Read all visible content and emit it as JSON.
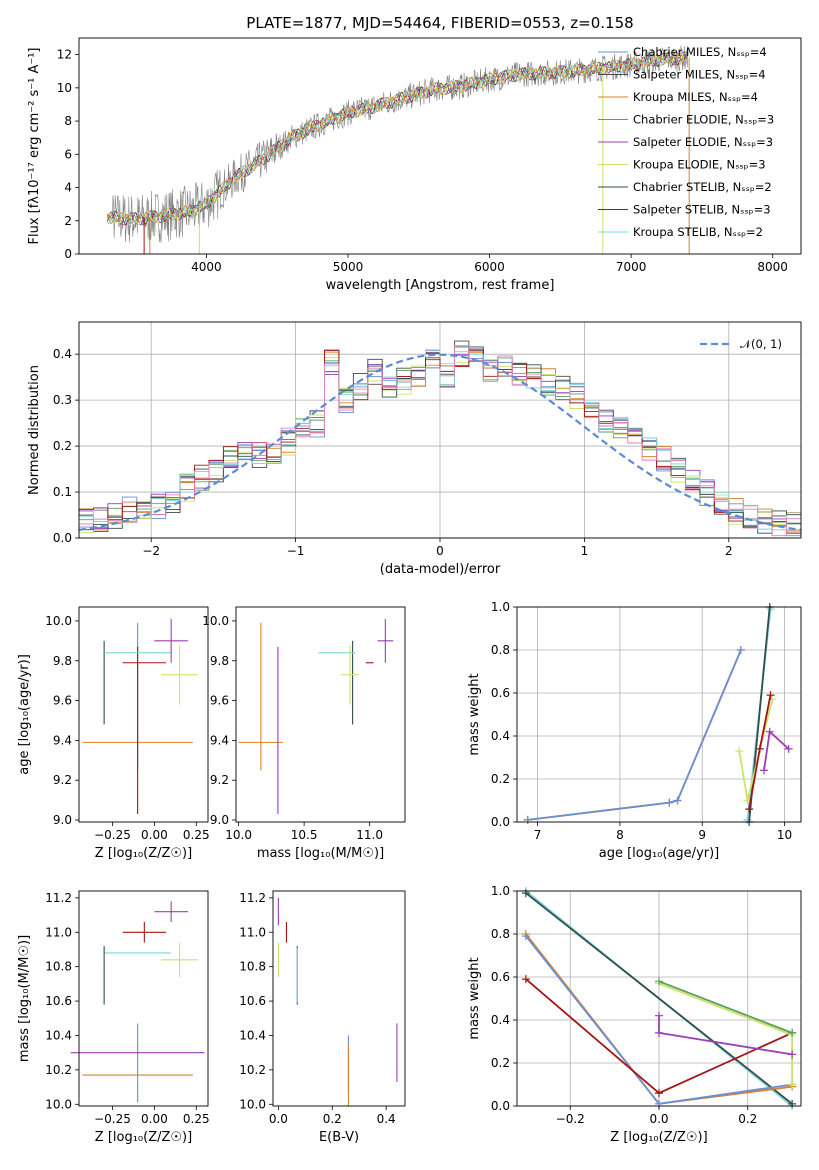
{
  "title": "PLATE=1877, MJD=54464, FIBERID=0553, z=0.158",
  "colors": {
    "chabrier_miles": "#6b8fd6",
    "salpeter_miles": "#4a4a4a",
    "kroupa_miles": "#d9822b",
    "chabrier_elodie": "#5aa05a",
    "salpeter_elodie": "#9a3fb5",
    "kroupa_elodie": "#c9e36b",
    "chabrier_stelib": "#2f4f4f",
    "salpeter_stelib": "#a31515",
    "kroupa_stelib": "#7fd4d9",
    "data_grey": "#808080",
    "normal": "#5b8bd6"
  },
  "chart_data": [
    {
      "id": "spectrum",
      "type": "line",
      "xlabel": "wavelength [Angstrom, rest frame]",
      "ylabel": "Flux [fλ10⁻¹⁷ erg cm⁻² s⁻¹ A⁻¹]",
      "xlim": [
        3100,
        8200
      ],
      "ylim": [
        0,
        13
      ],
      "xticks": [
        "4000",
        "5000",
        "6000",
        "7000",
        "8000"
      ],
      "yticks": [
        "0",
        "2",
        "4",
        "6",
        "8",
        "10",
        "12"
      ],
      "legend_position": "top-right",
      "series": [
        {
          "name": "Chabrier MILES, N_SSP=4",
          "color_key": "chabrier_miles"
        },
        {
          "name": "Salpeter MILES, N_SSP=4",
          "color_key": "salpeter_miles"
        },
        {
          "name": "Kroupa MILES, N_SSP=4",
          "color_key": "kroupa_miles"
        },
        {
          "name": "Chabrier ELODIE, N_SSP=3",
          "color_key": "chabrier_elodie"
        },
        {
          "name": "Salpeter ELODIE, N_SSP=3",
          "color_key": "salpeter_elodie"
        },
        {
          "name": "Kroupa ELODIE, N_SSP=3",
          "color_key": "kroupa_elodie"
        },
        {
          "name": "Chabrier STELIB, N_SSP=2",
          "color_key": "chabrier_stelib"
        },
        {
          "name": "Salpeter STELIB, N_SSP=3",
          "color_key": "salpeter_stelib"
        },
        {
          "name": "Kroupa STELIB, N_SSP=2",
          "color_key": "kroupa_stelib"
        }
      ],
      "continuum": {
        "x": [
          3300,
          3500,
          3700,
          3900,
          4000,
          4200,
          4400,
          4600,
          4800,
          5000,
          5200,
          5400,
          5600,
          5800,
          6000,
          6200,
          6400,
          6600,
          6800,
          7000,
          7200,
          7400
        ],
        "y": [
          2.2,
          2.1,
          2.3,
          2.6,
          3.0,
          4.6,
          5.7,
          7.0,
          7.8,
          8.5,
          8.9,
          9.4,
          9.9,
          10.1,
          10.5,
          10.8,
          10.9,
          11.0,
          11.2,
          11.4,
          11.7,
          11.8
        ]
      }
    },
    {
      "id": "residuals",
      "type": "histogram",
      "xlabel": "(data-model)/error",
      "ylabel": "Normed distribution",
      "xlim": [
        -2.5,
        2.5
      ],
      "ylim": [
        0,
        0.47
      ],
      "xticks": [
        "−2",
        "−1",
        "0",
        "1",
        "2"
      ],
      "yticks": [
        "0.0",
        "0.1",
        "0.2",
        "0.3",
        "0.4"
      ],
      "legend": "𝒩(0, 1)",
      "legend_position": "top-right",
      "grid": true,
      "bin_edges_start": -2.5,
      "bin_width": 0.1,
      "base_density": [
        0.04,
        0.04,
        0.05,
        0.06,
        0.07,
        0.07,
        0.08,
        0.11,
        0.13,
        0.14,
        0.18,
        0.19,
        0.18,
        0.18,
        0.21,
        0.23,
        0.25,
        0.38,
        0.3,
        0.33,
        0.36,
        0.33,
        0.34,
        0.36,
        0.38,
        0.35,
        0.4,
        0.39,
        0.37,
        0.38,
        0.36,
        0.35,
        0.34,
        0.33,
        0.31,
        0.28,
        0.26,
        0.24,
        0.21,
        0.19,
        0.17,
        0.15,
        0.12,
        0.1,
        0.08,
        0.06,
        0.05,
        0.04,
        0.03,
        0.03
      ]
    },
    {
      "id": "age_vs_Z",
      "type": "errorbar",
      "xlabel": "Z [log₁₀(Z/Z☉)]",
      "ylabel": "age  [log₁₀(age/yr)]",
      "xlim": [
        -0.45,
        0.32
      ],
      "ylim": [
        8.99,
        10.07
      ],
      "xticks": [
        "−0.25",
        "0.00",
        "0.25"
      ],
      "yticks": [
        "9.0",
        "9.2",
        "9.4",
        "9.6",
        "9.8",
        "10.0"
      ],
      "points": [
        {
          "x": -0.1,
          "y": 9.39,
          "xerr": 0.33,
          "yerr": 0.0,
          "color_key": "kroupa_miles"
        },
        {
          "x": -0.1,
          "y": 9.62,
          "xerr": 0.0,
          "yerr": 0.37,
          "color_key": "chabrier_miles"
        },
        {
          "x": -0.1,
          "y": 9.45,
          "xerr": 0.0,
          "yerr": 0.42,
          "color_key": "salpeter_stelib"
        },
        {
          "x": -0.3,
          "y": 9.69,
          "xerr": 0.0,
          "yerr": 0.21,
          "color_key": "chabrier_stelib"
        },
        {
          "x": -0.1,
          "y": 9.84,
          "xerr": 0.2,
          "yerr": 0.0,
          "color_key": "kroupa_stelib"
        },
        {
          "x": -0.06,
          "y": 9.79,
          "xerr": 0.13,
          "yerr": 0.0,
          "color_key": "salpeter_stelib"
        },
        {
          "x": 0.1,
          "y": 9.9,
          "xerr": 0.1,
          "yerr": 0.11,
          "color_key": "salpeter_elodie"
        },
        {
          "x": 0.15,
          "y": 9.73,
          "xerr": 0.11,
          "yerr": 0.15,
          "color_key": "kroupa_elodie"
        }
      ]
    },
    {
      "id": "age_vs_mass",
      "type": "errorbar",
      "xlabel": "mass [log₁₀(M/M☉)]",
      "ylabel": "",
      "xlim": [
        9.98,
        11.27
      ],
      "ylim": [
        8.99,
        10.07
      ],
      "xticks": [
        "10.0",
        "10.5",
        "11.0"
      ],
      "yticks": [
        "9.0",
        "9.2",
        "9.4",
        "9.6",
        "9.8",
        "10.0"
      ],
      "points": [
        {
          "x": 10.17,
          "y": 9.39,
          "xerr": 0.17,
          "yerr": 0.0,
          "color_key": "kroupa_miles"
        },
        {
          "x": 10.17,
          "y": 9.62,
          "xerr": 0.0,
          "yerr": 0.37,
          "color_key": "kroupa_miles"
        },
        {
          "x": 10.3,
          "y": 9.45,
          "xerr": 0.0,
          "yerr": 0.42,
          "color_key": "salpeter_elodie"
        },
        {
          "x": 10.87,
          "y": 9.69,
          "xerr": 0.0,
          "yerr": 0.21,
          "color_key": "chabrier_stelib"
        },
        {
          "x": 10.75,
          "y": 9.84,
          "xerr": 0.14,
          "yerr": 0.0,
          "color_key": "kroupa_stelib"
        },
        {
          "x": 10.85,
          "y": 9.73,
          "xerr": 0.07,
          "yerr": 0.15,
          "color_key": "kroupa_elodie"
        },
        {
          "x": 11.0,
          "y": 9.79,
          "xerr": 0.03,
          "yerr": 0.0,
          "color_key": "salpeter_stelib"
        },
        {
          "x": 11.12,
          "y": 9.9,
          "xerr": 0.06,
          "yerr": 0.11,
          "color_key": "salpeter_elodie"
        }
      ]
    },
    {
      "id": "mass_weight_vs_age",
      "type": "line",
      "xlabel": "age  [log₁₀(age/yr)]",
      "ylabel": "mass weight",
      "xlim": [
        6.75,
        10.2
      ],
      "ylim": [
        0,
        1
      ],
      "xticks": [
        "7",
        "8",
        "9",
        "10"
      ],
      "yticks": [
        "0.0",
        "0.2",
        "0.4",
        "0.6",
        "0.8",
        "1.0"
      ],
      "grid": true,
      "series": [
        {
          "color_key": "kroupa_miles",
          "x": [
            6.88,
            8.6,
            8.7,
            9.47
          ],
          "y": [
            0.01,
            0.09,
            0.1,
            0.8
          ]
        },
        {
          "color_key": "chabrier_miles",
          "x": [
            6.88,
            8.6,
            8.7,
            9.47
          ],
          "y": [
            0.01,
            0.09,
            0.1,
            0.8
          ]
        },
        {
          "color_key": "kroupa_stelib",
          "x": [
            9.55,
            9.83
          ],
          "y": [
            0.01,
            0.99
          ]
        },
        {
          "color_key": "chabrier_stelib",
          "x": [
            9.57,
            9.82
          ],
          "y": [
            0.0,
            1.0
          ]
        },
        {
          "color_key": "kroupa_elodie",
          "x": [
            9.45,
            9.55,
            9.85
          ],
          "y": [
            0.33,
            0.1,
            0.57
          ]
        },
        {
          "color_key": "salpeter_stelib",
          "x": [
            9.57,
            9.7,
            9.83
          ],
          "y": [
            0.06,
            0.34,
            0.59
          ]
        },
        {
          "color_key": "salpeter_elodie",
          "x": [
            9.75,
            9.82,
            10.05
          ],
          "y": [
            0.24,
            0.42,
            0.34
          ]
        }
      ]
    },
    {
      "id": "mass_vs_Z",
      "type": "errorbar",
      "xlabel": "Z [log₁₀(Z/Z☉)]",
      "ylabel": "mass [log₁₀(M/M☉)]",
      "xlim": [
        -0.45,
        0.32
      ],
      "ylim": [
        9.99,
        11.24
      ],
      "xticks": [
        "−0.25",
        "0.00",
        "0.25"
      ],
      "yticks": [
        "10.0",
        "10.2",
        "10.4",
        "10.6",
        "10.8",
        "11.0",
        "11.2"
      ],
      "points": [
        {
          "x": -0.1,
          "y": 10.17,
          "xerr": 0.33,
          "yerr": 0.0,
          "color_key": "kroupa_miles"
        },
        {
          "x": -0.1,
          "y": 10.24,
          "xerr": 0.0,
          "yerr": 0.23,
          "color_key": "chabrier_miles"
        },
        {
          "x": -0.1,
          "y": 10.3,
          "xerr": 0.4,
          "yerr": 0.0,
          "color_key": "salpeter_elodie"
        },
        {
          "x": -0.1,
          "y": 10.88,
          "xerr": 0.2,
          "yerr": 0.0,
          "color_key": "kroupa_stelib"
        },
        {
          "x": -0.3,
          "y": 10.75,
          "xerr": 0.0,
          "yerr": 0.17,
          "color_key": "chabrier_stelib"
        },
        {
          "x": -0.06,
          "y": 11.0,
          "xerr": 0.13,
          "yerr": 0.06,
          "color_key": "salpeter_stelib"
        },
        {
          "x": 0.1,
          "y": 11.12,
          "xerr": 0.1,
          "yerr": 0.06,
          "color_key": "salpeter_elodie"
        },
        {
          "x": 0.15,
          "y": 10.84,
          "xerr": 0.11,
          "yerr": 0.1,
          "color_key": "kroupa_elodie"
        }
      ]
    },
    {
      "id": "mass_vs_EBV",
      "type": "errorbar",
      "xlabel": "E(B-V)",
      "ylabel": "",
      "xlim": [
        -0.02,
        0.47
      ],
      "ylim": [
        9.99,
        11.24
      ],
      "xticks": [
        "0.0",
        "0.2",
        "0.4"
      ],
      "yticks": [
        "10.0",
        "10.2",
        "10.4",
        "10.6",
        "10.8",
        "11.0",
        "11.2"
      ],
      "points": [
        {
          "x": 0.0,
          "y": 11.12,
          "xerr": 0.0,
          "yerr": 0.08,
          "color_key": "salpeter_elodie"
        },
        {
          "x": 0.0,
          "y": 10.84,
          "xerr": 0.0,
          "yerr": 0.1,
          "color_key": "kroupa_elodie"
        },
        {
          "x": 0.03,
          "y": 11.0,
          "xerr": 0.0,
          "yerr": 0.06,
          "color_key": "salpeter_stelib"
        },
        {
          "x": 0.07,
          "y": 10.75,
          "xerr": 0.0,
          "yerr": 0.17,
          "color_key": "chabrier_stelib"
        },
        {
          "x": 0.07,
          "y": 10.75,
          "xerr": 0.0,
          "yerr": 0.16,
          "color_key": "kroupa_stelib"
        },
        {
          "x": 0.26,
          "y": 10.24,
          "xerr": 0.0,
          "yerr": 0.16,
          "color_key": "chabrier_miles"
        },
        {
          "x": 0.26,
          "y": 10.17,
          "xerr": 0.0,
          "yerr": 0.18,
          "color_key": "kroupa_miles"
        },
        {
          "x": 0.44,
          "y": 10.3,
          "xerr": 0.0,
          "yerr": 0.17,
          "color_key": "salpeter_elodie"
        }
      ]
    },
    {
      "id": "mass_weight_vs_Z",
      "type": "line",
      "xlabel": "Z [log₁₀(Z/Z☉)]",
      "ylabel": "mass weight",
      "xlim": [
        -0.32,
        0.32
      ],
      "ylim": [
        0,
        1
      ],
      "xticks": [
        "−0.2",
        "0.0",
        "0.2"
      ],
      "yticks": [
        "0.0",
        "0.2",
        "0.4",
        "0.6",
        "0.8",
        "1.0"
      ],
      "grid": true,
      "series": [
        {
          "color_key": "kroupa_stelib",
          "x": [
            -0.3,
            0.3
          ],
          "y": [
            1.0,
            0.0
          ]
        },
        {
          "color_key": "chabrier_stelib",
          "x": [
            -0.3,
            0.3
          ],
          "y": [
            0.99,
            0.01
          ]
        },
        {
          "color_key": "kroupa_miles",
          "x": [
            -0.3,
            0.0,
            0.3
          ],
          "y": [
            0.8,
            0.01,
            0.09
          ]
        },
        {
          "color_key": "chabrier_miles",
          "x": [
            -0.3,
            0.0,
            0.3
          ],
          "y": [
            0.79,
            0.01,
            0.1
          ]
        },
        {
          "color_key": "salpeter_stelib",
          "x": [
            -0.3,
            0.0,
            0.3
          ],
          "y": [
            0.59,
            0.06,
            0.34
          ]
        },
        {
          "color_key": "kroupa_elodie",
          "x": [
            0.0,
            0.3,
            0.3
          ],
          "y": [
            0.57,
            0.33,
            0.1
          ]
        },
        {
          "color_key": "chabrier_elodie",
          "x": [
            0.0,
            0.3
          ],
          "y": [
            0.58,
            0.34
          ]
        },
        {
          "color_key": "salpeter_elodie",
          "x": [
            0.0,
            0.0,
            0.3
          ],
          "y": [
            0.42,
            0.34,
            0.24
          ]
        }
      ]
    }
  ]
}
